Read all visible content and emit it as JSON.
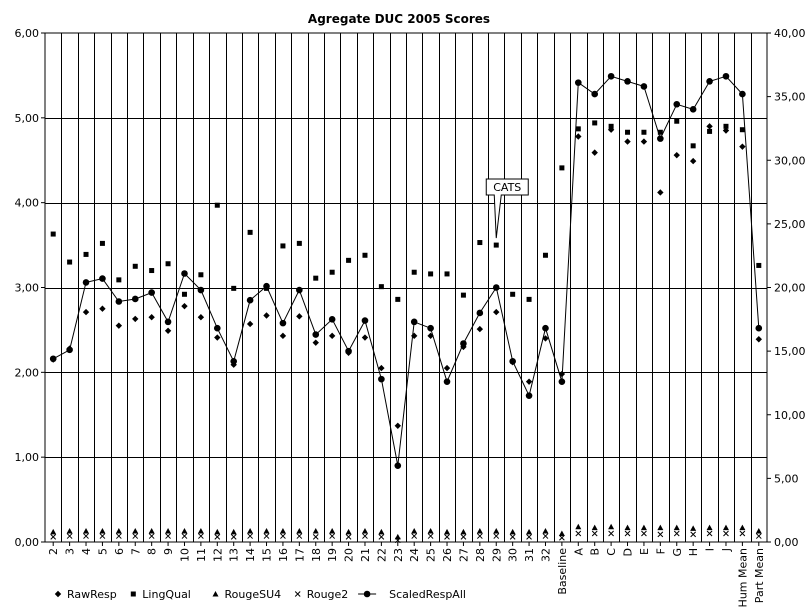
{
  "chart_data": {
    "type": "line",
    "title": "Agregate DUC 2005 Scores",
    "xlabel": "",
    "ylabel": "",
    "y2label": "",
    "ylim": [
      0,
      6
    ],
    "y2lim": [
      0,
      40
    ],
    "y_ticks": [
      "0,00",
      "1,00",
      "2,00",
      "3,00",
      "4,00",
      "5,00",
      "6,00"
    ],
    "y2_ticks": [
      "0,00",
      "5,00",
      "10,00",
      "15,00",
      "20,00",
      "25,00",
      "30,00",
      "35,00",
      "40,00"
    ],
    "grid": true,
    "legend_position": "bottom-left",
    "categories": [
      "2",
      "3",
      "4",
      "5",
      "6",
      "7",
      "8",
      "9",
      "10",
      "11",
      "12",
      "13",
      "14",
      "15",
      "16",
      "17",
      "18",
      "19",
      "20",
      "21",
      "22",
      "23",
      "24",
      "25",
      "26",
      "27",
      "28",
      "29",
      "30",
      "31",
      "32",
      "Baseline",
      "A",
      "B",
      "C",
      "D",
      "E",
      "F",
      "G",
      "H",
      "I",
      "J",
      "Hum Mean",
      "Part Mean"
    ],
    "series": [
      {
        "name": "RawResp",
        "axis": "left",
        "marker": "diamond",
        "values": [
          2.15,
          2.28,
          2.71,
          2.75,
          2.55,
          2.63,
          2.65,
          2.49,
          2.78,
          2.65,
          2.41,
          2.09,
          2.57,
          2.67,
          2.43,
          2.66,
          2.35,
          2.43,
          2.23,
          2.41,
          2.05,
          1.37,
          2.43,
          2.43,
          2.05,
          2.3,
          2.51,
          2.71,
          2.12,
          1.89,
          2.4,
          1.98,
          4.78,
          4.59,
          4.86,
          4.72,
          4.72,
          4.12,
          4.56,
          4.49,
          4.9,
          4.85,
          4.66,
          2.39
        ]
      },
      {
        "name": "LingQual",
        "axis": "left",
        "marker": "square",
        "values": [
          3.63,
          3.3,
          3.39,
          3.52,
          3.09,
          3.25,
          3.2,
          3.28,
          2.92,
          3.15,
          3.97,
          2.99,
          3.65,
          2.99,
          3.49,
          3.52,
          3.11,
          3.18,
          3.32,
          3.38,
          3.01,
          2.86,
          3.18,
          3.16,
          3.16,
          2.91,
          3.53,
          3.5,
          2.92,
          2.86,
          3.38,
          4.41,
          4.87,
          4.94,
          4.9,
          4.83,
          4.83,
          4.83,
          4.96,
          4.67,
          4.84,
          4.9,
          4.86,
          3.26
        ]
      },
      {
        "name": "RougeSU4",
        "axis": "left",
        "marker": "triangle",
        "values": [
          0.12,
          0.13,
          0.13,
          0.13,
          0.13,
          0.13,
          0.13,
          0.13,
          0.13,
          0.13,
          0.12,
          0.12,
          0.13,
          0.13,
          0.13,
          0.13,
          0.13,
          0.13,
          0.12,
          0.13,
          0.12,
          0.06,
          0.13,
          0.13,
          0.12,
          0.12,
          0.13,
          0.13,
          0.12,
          0.12,
          0.13,
          0.1,
          0.18,
          0.17,
          0.18,
          0.17,
          0.17,
          0.17,
          0.17,
          0.16,
          0.17,
          0.17,
          0.17,
          0.13
        ]
      },
      {
        "name": "Rouge2",
        "axis": "left",
        "marker": "x",
        "values": [
          0.06,
          0.07,
          0.07,
          0.07,
          0.07,
          0.07,
          0.07,
          0.07,
          0.07,
          0.07,
          0.06,
          0.06,
          0.07,
          0.07,
          0.07,
          0.07,
          0.06,
          0.07,
          0.06,
          0.07,
          0.06,
          0.02,
          0.07,
          0.07,
          0.06,
          0.06,
          0.07,
          0.07,
          0.06,
          0.06,
          0.07,
          0.05,
          0.1,
          0.1,
          0.1,
          0.1,
          0.1,
          0.09,
          0.1,
          0.09,
          0.1,
          0.1,
          0.1,
          0.07
        ]
      },
      {
        "name": "ScaledRespAll",
        "axis": "right",
        "marker": "circle-line",
        "values": [
          14.4,
          15.1,
          20.4,
          20.7,
          18.9,
          19.1,
          19.6,
          17.3,
          21.1,
          19.8,
          16.8,
          14.2,
          19.0,
          20.1,
          17.2,
          19.8,
          16.3,
          17.5,
          15.0,
          17.4,
          12.8,
          6.0,
          17.3,
          16.8,
          12.6,
          15.6,
          18.0,
          20.0,
          14.2,
          11.5,
          16.8,
          12.6,
          36.1,
          35.2,
          36.6,
          36.2,
          35.8,
          31.7,
          34.4,
          34.0,
          36.2,
          36.6,
          35.2,
          16.8
        ]
      }
    ],
    "annotations": [
      {
        "text": "CATS",
        "category": "29"
      }
    ]
  }
}
